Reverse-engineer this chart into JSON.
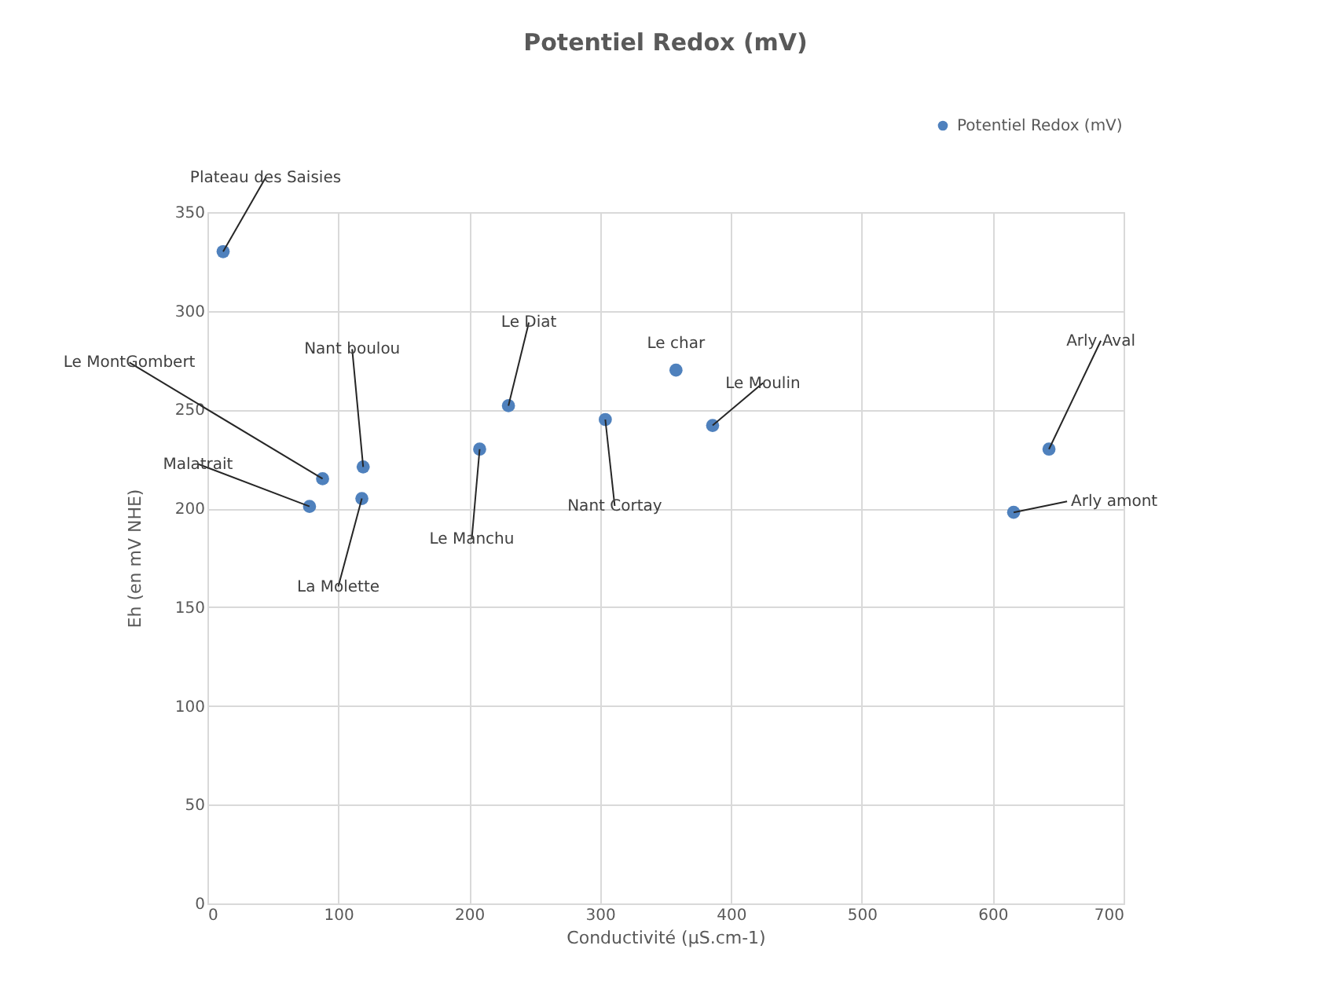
{
  "chart_data": {
    "type": "scatter",
    "title": "Potentiel Redox (mV)",
    "xlabel": "Conductivité (µS.cm-1)",
    "ylabel": "Eh (en mV NHE)",
    "x": [
      12,
      78,
      88,
      119,
      118,
      208,
      230,
      304,
      358,
      386,
      643,
      616
    ],
    "series": [
      {
        "name": "Potentiel Redox (mV)",
        "color": "#4f81bd",
        "values": [
          330,
          201,
          215,
          221,
          205,
          230,
          252,
          245,
          270,
          242,
          230,
          198
        ]
      }
    ],
    "annotations": [
      {
        "text": "Plateau des Saisies",
        "x": 12,
        "y": 330
      },
      {
        "text": "Malatrait",
        "x": 78,
        "y": 201
      },
      {
        "text": "Le MontGombert",
        "x": 88,
        "y": 215
      },
      {
        "text": "Nant boulou",
        "x": 119,
        "y": 221
      },
      {
        "text": "La Molette",
        "x": 118,
        "y": 205
      },
      {
        "text": "Le Manchu",
        "x": 208,
        "y": 230
      },
      {
        "text": "Le Diat",
        "x": 230,
        "y": 252
      },
      {
        "text": "Nant Cortay",
        "x": 304,
        "y": 245
      },
      {
        "text": "Le char",
        "x": 358,
        "y": 270
      },
      {
        "text": "Le Moulin",
        "x": 386,
        "y": 242
      },
      {
        "text": "Arly Aval",
        "x": 643,
        "y": 230
      },
      {
        "text": "Arly amont",
        "x": 616,
        "y": 198
      }
    ],
    "xlim": [
      0,
      700
    ],
    "ylim": [
      0,
      350
    ],
    "xticks": [
      0,
      100,
      200,
      300,
      400,
      500,
      600,
      700
    ],
    "yticks": [
      0,
      50,
      100,
      150,
      200,
      250,
      300,
      350
    ],
    "grid": true,
    "legend": "top right",
    "marker": "circle"
  }
}
